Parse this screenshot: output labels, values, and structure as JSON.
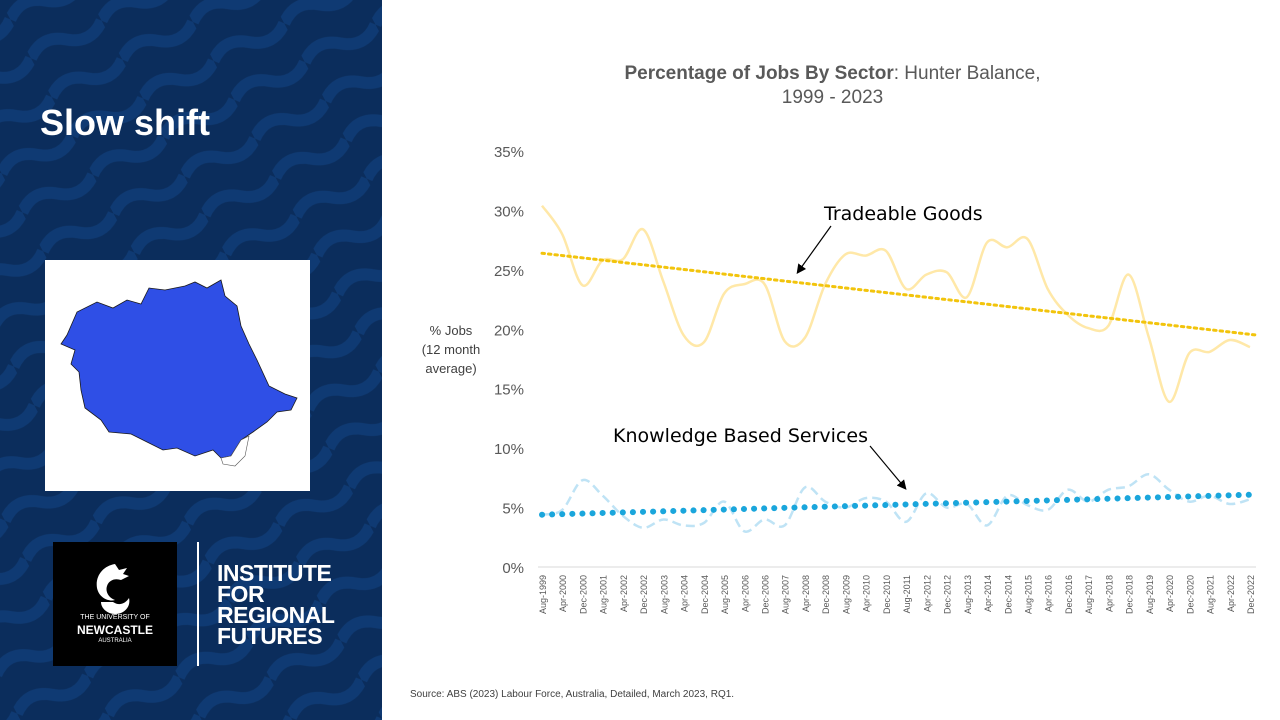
{
  "slide": {
    "title": "Slow shift",
    "source": "Source: ABS (2023) Labour Force, Australia, Detailed, March 2023, RQ1."
  },
  "map": {
    "icon": "hunter-region-map",
    "fill_color": "#2f4fe6"
  },
  "logos": {
    "university": {
      "line1": "THE UNIVERSITY OF",
      "line2": "NEWCASTLE",
      "line3": "AUSTRALIA",
      "icon": "seahorse-crest-icon"
    },
    "institute": [
      "INSTITUTE",
      "FOR",
      "REGIONAL",
      "FUTURES"
    ]
  },
  "colors": {
    "panel_bg": "#0b2d5c",
    "tradeable": "#ffe8a8",
    "tradeable_trend": "#f2c40c",
    "knowledge": "#bfe3f5",
    "knowledge_trend": "#1aa6dc"
  },
  "chart_data": {
    "type": "line",
    "title_bold": "Percentage of Jobs By Sector",
    "title_rest": ": Hunter Balance,",
    "title_line2": "1999 - 2023",
    "ylabel": [
      "% Jobs",
      "(12 month",
      "average)"
    ],
    "ylim": [
      0,
      35
    ],
    "yticks": [
      "0%",
      "5%",
      "10%",
      "15%",
      "20%",
      "25%",
      "30%",
      "35%"
    ],
    "x_ticks": [
      "Aug-1999",
      "Apr-2000",
      "Dec-2000",
      "Aug-2001",
      "Apr-2002",
      "Dec-2002",
      "Aug-2003",
      "Apr-2004",
      "Dec-2004",
      "Aug-2005",
      "Apr-2006",
      "Dec-2006",
      "Aug-2007",
      "Apr-2008",
      "Dec-2008",
      "Aug-2009",
      "Apr-2010",
      "Dec-2010",
      "Aug-2011",
      "Apr-2012",
      "Dec-2012",
      "Aug-2013",
      "Apr-2014",
      "Dec-2014",
      "Aug-2015",
      "Apr-2016",
      "Dec-2016",
      "Aug-2017",
      "Apr-2018",
      "Dec-2018",
      "Aug-2019",
      "Apr-2020",
      "Dec-2020",
      "Aug-2021",
      "Apr-2022",
      "Dec-2022"
    ],
    "series": [
      {
        "name": "Tradeable Goods",
        "values": [
          30.4,
          28.0,
          23.7,
          25.8,
          25.9,
          28.4,
          24.0,
          19.5,
          18.9,
          23.0,
          23.8,
          23.8,
          19.0,
          19.3,
          23.8,
          26.3,
          26.2,
          26.6,
          23.4,
          24.6,
          24.8,
          22.7,
          27.3,
          26.9,
          27.6,
          23.4,
          21.2,
          20.1,
          20.3,
          24.6,
          19.3,
          13.9,
          18.0,
          18.1,
          19.1,
          18.5
        ]
      },
      {
        "name": "Knowledge Based Services",
        "values": [
          4.4,
          4.8,
          7.3,
          6.0,
          4.3,
          3.3,
          4.0,
          3.5,
          3.7,
          5.5,
          3.0,
          4.0,
          3.5,
          6.7,
          5.5,
          5.0,
          5.8,
          5.5,
          3.8,
          6.2,
          5.0,
          5.3,
          3.5,
          6.0,
          5.2,
          4.8,
          6.5,
          5.5,
          6.5,
          6.8,
          7.8,
          6.5,
          5.5,
          6.0,
          5.3,
          5.7
        ]
      }
    ],
    "trend_start": [
      26.4,
      4.4
    ],
    "trend_end": [
      19.5,
      6.1
    ],
    "annotations": {
      "tradeable": "Tradeable Goods",
      "knowledge": "Knowledge Based Services"
    }
  }
}
